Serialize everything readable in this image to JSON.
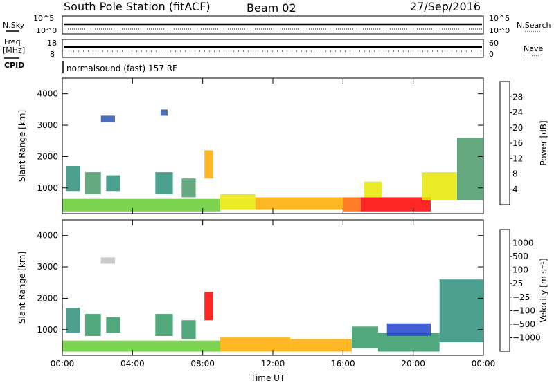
{
  "header": {
    "station": "South Pole Station (fitACF)",
    "beam": "Beam 02",
    "date": "27/Sep/2016"
  },
  "summary_panels": {
    "nsky_label": "N.Sky",
    "nsearch_label": "N.Search",
    "freq_label": "Freq.",
    "freq_unit": "[MHz]",
    "nave_label": "Nave",
    "cpid_label": "CPID",
    "cpid_text": "normalsound (fast) 157 RF",
    "noise_ticks": [
      "10^5",
      "10^0"
    ],
    "freq_ticks": [
      "18",
      "8"
    ],
    "nave_ticks": [
      "60",
      "0"
    ]
  },
  "chart_data": [
    {
      "type": "heatmap",
      "id": "power",
      "ylabel": "Slant Range [km]",
      "xlabel": "Time UT",
      "xlim_hours": [
        0,
        24
      ],
      "ylim_km": [
        180,
        4500
      ],
      "xticks": [
        "00:00",
        "04:00",
        "08:00",
        "12:00",
        "16:00",
        "20:00",
        "00:00"
      ],
      "yticks": [
        1000,
        2000,
        3000,
        4000
      ],
      "colorbar": {
        "label": "Power [dB]",
        "range": [
          0,
          32
        ],
        "ticks": [
          "4",
          "8",
          "12",
          "16",
          "20",
          "24",
          "28"
        ],
        "colors": [
          "#0000ff",
          "#2956b2",
          "#2d8f7d",
          "#4a9a6a",
          "#66cc33",
          "#e6e600",
          "#ffaa00",
          "#ff6600",
          "#ff0000"
        ]
      },
      "patches": [
        {
          "t": [
            0.2,
            1.0
          ],
          "r": [
            900,
            1700
          ],
          "level": 2
        },
        {
          "t": [
            1.3,
            2.2
          ],
          "r": [
            800,
            1500
          ],
          "level": 3
        },
        {
          "t": [
            2.5,
            3.3
          ],
          "r": [
            900,
            1400
          ],
          "level": 2
        },
        {
          "t": [
            2.2,
            3.0
          ],
          "r": [
            3100,
            3300
          ],
          "level": 1
        },
        {
          "t": [
            5.3,
            6.3
          ],
          "r": [
            800,
            1500
          ],
          "level": 2
        },
        {
          "t": [
            5.6,
            6.0
          ],
          "r": [
            3300,
            3500
          ],
          "level": 1
        },
        {
          "t": [
            6.8,
            7.6
          ],
          "r": [
            700,
            1300
          ],
          "level": 3
        },
        {
          "t": [
            8.1,
            8.6
          ],
          "r": [
            1300,
            2200
          ],
          "level": 6
        },
        {
          "t": [
            0.0,
            9.0
          ],
          "r": [
            250,
            650
          ],
          "level": 4
        },
        {
          "t": [
            9.0,
            11.0
          ],
          "r": [
            300,
            800
          ],
          "level": 5
        },
        {
          "t": [
            11.0,
            16.0
          ],
          "r": [
            300,
            700
          ],
          "level": 6
        },
        {
          "t": [
            16.0,
            17.0
          ],
          "r": [
            250,
            700
          ],
          "level": 7
        },
        {
          "t": [
            17.0,
            21.0
          ],
          "r": [
            250,
            700
          ],
          "level": 8
        },
        {
          "t": [
            17.2,
            18.2
          ],
          "r": [
            700,
            1200
          ],
          "level": 5
        },
        {
          "t": [
            20.5,
            22.5
          ],
          "r": [
            600,
            1500
          ],
          "level": 5
        },
        {
          "t": [
            22.5,
            24.0
          ],
          "r": [
            600,
            2600
          ],
          "level": 3
        }
      ]
    },
    {
      "type": "heatmap",
      "id": "velocity",
      "ylabel": "Slant Range [km]",
      "xlabel": "Time UT",
      "xlim_hours": [
        0,
        24
      ],
      "ylim_km": [
        180,
        4500
      ],
      "xticks": [
        "00:00",
        "04:00",
        "08:00",
        "12:00",
        "16:00",
        "20:00",
        "00:00"
      ],
      "yticks": [
        1000,
        2000,
        3000,
        4000
      ],
      "colorbar": {
        "label": "Velocity [m s⁻¹]",
        "ticks": [
          "1000",
          "500",
          "100",
          "25",
          "−25",
          "−100",
          "−500",
          "−1000"
        ],
        "colors": [
          "#2233aa",
          "#2244cc",
          "#2d8f7d",
          "#339966",
          "#66cc33",
          "#c0c0c0",
          "#ffcc00",
          "#ffaa00",
          "#ff6600",
          "#ff0000"
        ]
      },
      "patches": [
        {
          "t": [
            0.2,
            1.0
          ],
          "r": [
            900,
            1700
          ],
          "level": 2
        },
        {
          "t": [
            1.3,
            2.2
          ],
          "r": [
            800,
            1500
          ],
          "level": 3
        },
        {
          "t": [
            2.5,
            3.3
          ],
          "r": [
            900,
            1400
          ],
          "level": 3
        },
        {
          "t": [
            2.2,
            3.0
          ],
          "r": [
            3100,
            3300
          ],
          "level": 5
        },
        {
          "t": [
            5.3,
            6.3
          ],
          "r": [
            800,
            1500
          ],
          "level": 3
        },
        {
          "t": [
            6.8,
            7.6
          ],
          "r": [
            700,
            1300
          ],
          "level": 3
        },
        {
          "t": [
            8.1,
            8.6
          ],
          "r": [
            1300,
            2200
          ],
          "level": 9
        },
        {
          "t": [
            0.0,
            9.0
          ],
          "r": [
            300,
            650
          ],
          "level": 4
        },
        {
          "t": [
            9.0,
            13.0
          ],
          "r": [
            300,
            750
          ],
          "level": 7
        },
        {
          "t": [
            13.0,
            16.5
          ],
          "r": [
            300,
            700
          ],
          "level": 7
        },
        {
          "t": [
            16.5,
            18.0
          ],
          "r": [
            400,
            1100
          ],
          "level": 3
        },
        {
          "t": [
            18.0,
            21.5
          ],
          "r": [
            300,
            900
          ],
          "level": 3
        },
        {
          "t": [
            18.5,
            21.0
          ],
          "r": [
            800,
            1200
          ],
          "level": 1
        },
        {
          "t": [
            21.5,
            24.0
          ],
          "r": [
            600,
            2600
          ],
          "level": 2
        }
      ]
    }
  ]
}
